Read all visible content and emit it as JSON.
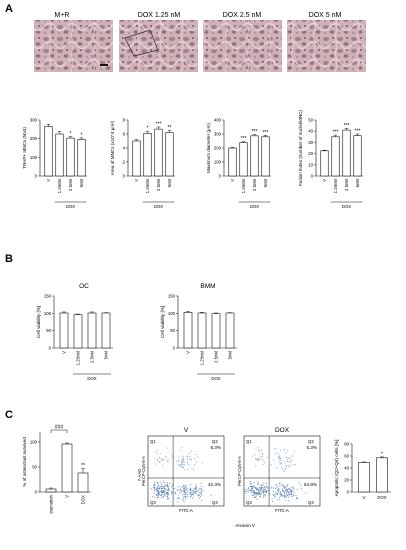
{
  "panels": {
    "a": "A",
    "b": "B",
    "c": "C"
  },
  "micrographs": [
    {
      "label": "M+R"
    },
    {
      "label": "DOX 1.25 nM"
    },
    {
      "label": "DOX 2.5 nM"
    },
    {
      "label": "DOX 5 nM"
    }
  ],
  "group_label": "DOX",
  "chart_data": [
    {
      "type": "bar",
      "panel": "A",
      "categories": [
        "V",
        "1.25nM",
        "2.5nM",
        "5nM"
      ],
      "values": [
        265,
        225,
        203,
        196
      ],
      "errors": [
        12,
        14,
        8,
        8
      ],
      "significance": [
        "",
        "",
        "*",
        "*"
      ],
      "ylabel": "TRAP+ MNCs (N≥3)",
      "ylim": [
        0,
        300
      ],
      "yticks": [
        0,
        100,
        200,
        300
      ],
      "group_label": "DOX",
      "group_start": 1
    },
    {
      "type": "bar",
      "panel": "A",
      "categories": [
        "V",
        "1.25nM",
        "2.5nM",
        "5nM"
      ],
      "values": [
        5.0,
        6.1,
        6.7,
        6.2
      ],
      "errors": [
        0.2,
        0.3,
        0.3,
        0.3
      ],
      "significance": [
        "",
        "*",
        "***",
        "**"
      ],
      "ylabel": "Area of MNCs (x10^4 μm²)",
      "ylim": [
        0,
        8
      ],
      "yticks": [
        0,
        2,
        4,
        6,
        8
      ],
      "group_label": "DOX",
      "group_start": 1
    },
    {
      "type": "bar",
      "panel": "A",
      "categories": [
        "V",
        "1.25nM",
        "2.5nM",
        "5nM"
      ],
      "values": [
        200,
        238,
        287,
        280
      ],
      "errors": [
        4,
        7,
        8,
        10
      ],
      "significance": [
        "",
        "***",
        "***",
        "***"
      ],
      "ylabel": "Maximum diameter (μm)",
      "ylim": [
        0,
        400
      ],
      "yticks": [
        0,
        100,
        200,
        300,
        400
      ],
      "group_label": "DOX",
      "group_start": 1
    },
    {
      "type": "bar",
      "panel": "A",
      "categories": [
        "V",
        "1.25nM",
        "2.5nM",
        "5nM"
      ],
      "values": [
        22.5,
        35,
        41,
        36
      ],
      "errors": [
        0.5,
        1.5,
        1.5,
        1.5
      ],
      "significance": [
        "",
        "***",
        "***",
        "***"
      ],
      "ylabel": "Fusion index (number of nuclei/MNC)",
      "ylim": [
        0,
        50
      ],
      "yticks": [
        0,
        10,
        20,
        30,
        40,
        50
      ],
      "group_label": "DOX",
      "group_start": 1
    },
    {
      "type": "bar",
      "panel": "B",
      "title": "OC",
      "categories": [
        "V",
        "1.25nM",
        "2.5nM",
        "5nM"
      ],
      "values": [
        101,
        96,
        101,
        101
      ],
      "errors": [
        3,
        2,
        3,
        1
      ],
      "significance": [
        "",
        "",
        "",
        ""
      ],
      "ylabel": "Cell viability [%]",
      "ylim": [
        0,
        150
      ],
      "yticks": [
        0,
        50,
        100,
        150
      ],
      "group_label": "DOX",
      "group_start": 1
    },
    {
      "type": "bar",
      "panel": "B",
      "title": "BMM",
      "categories": [
        "V",
        "1.25nM",
        "2.5nM",
        "5nM"
      ],
      "values": [
        103,
        101,
        99,
        101
      ],
      "errors": [
        3,
        2,
        2,
        1
      ],
      "significance": [
        "",
        "",
        "",
        ""
      ],
      "ylabel": "Cell viability [%]",
      "ylim": [
        0,
        150
      ],
      "yticks": [
        0,
        50,
        100,
        150
      ],
      "group_label": "DOX",
      "group_start": 1
    },
    {
      "type": "bar",
      "panel": "C",
      "categories": [
        "starvation",
        "V",
        "DOX"
      ],
      "values": [
        6,
        96,
        38
      ],
      "errors": [
        2,
        2,
        9
      ],
      "significance": [
        "",
        "",
        "**"
      ],
      "ylabel": "% of osteoclast survived",
      "ylim": [
        0,
        120
      ],
      "yticks": [
        0,
        50,
        100
      ],
      "bracket_label": "###",
      "bracket_from": 0,
      "bracket_to": 1
    },
    {
      "type": "scatter",
      "panel": "C",
      "title": "V",
      "xlabel": "FITC-A",
      "ylabel": "PerCP-Cy5-5-A",
      "quadrant_labels": [
        "Q1",
        "Q2",
        "Q3",
        "Q4"
      ],
      "q2_percent": "8.3%",
      "q4_percent": "42.3%"
    },
    {
      "type": "scatter",
      "panel": "C",
      "title": "DOX",
      "xlabel": "FITC-A",
      "ylabel": "PerCP-Cy5-5-A",
      "quadrant_labels": [
        "Q1",
        "Q2",
        "Q3",
        "Q4"
      ],
      "q2_percent": "5.3%",
      "q4_percent": "54.8%"
    },
    {
      "type": "bar",
      "panel": "C",
      "categories": [
        "V",
        "DOX"
      ],
      "values": [
        49,
        57
      ],
      "errors": [
        1,
        1.5
      ],
      "significance": [
        "",
        "*"
      ],
      "ylabel": "Apoptotic (Q2+Q4) cells [%]",
      "ylim": [
        0,
        80
      ],
      "yticks": [
        0,
        20,
        40,
        60,
        80
      ]
    }
  ],
  "flow_axes": {
    "shared_ylabel": "7-AAD",
    "shared_xlabel": "Annexin V"
  }
}
